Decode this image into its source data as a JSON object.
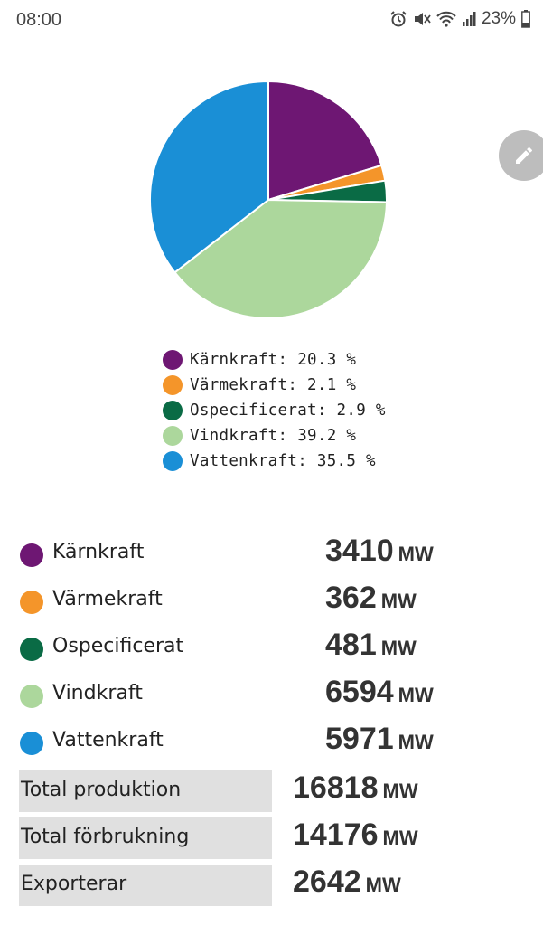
{
  "status_bar": {
    "time": "08:00",
    "battery": "23%",
    "icons": [
      "alarm-icon",
      "mute-icon",
      "wifi-icon",
      "signal-icon",
      "battery-icon"
    ]
  },
  "chart_data": {
    "type": "pie",
    "categories": [
      "Kärnkraft",
      "Värmekraft",
      "Ospecificerat",
      "Vindkraft",
      "Vattenkraft"
    ],
    "values": [
      20.3,
      2.1,
      2.9,
      39.2,
      35.5
    ],
    "colors": [
      "#6e1773",
      "#f4952a",
      "#0a6b45",
      "#acd79c",
      "#1a8fd6"
    ],
    "legend": [
      "Kärnkraft: 20.3 %",
      "Värmekraft: 2.1 %",
      "Ospecificerat: 2.9 %",
      "Vindkraft: 39.2 %",
      "Vattenkraft: 35.5 %"
    ],
    "legend_position": "bottom"
  },
  "sources": [
    {
      "name": "Kärnkraft",
      "value": "3410",
      "unit": "MW",
      "color": "#6e1773"
    },
    {
      "name": "Värmekraft",
      "value": "362",
      "unit": "MW",
      "color": "#f4952a"
    },
    {
      "name": "Ospecificerat",
      "value": "481",
      "unit": "MW",
      "color": "#0a6b45"
    },
    {
      "name": "Vindkraft",
      "value": "6594",
      "unit": "MW",
      "color": "#acd79c"
    },
    {
      "name": "Vattenkraft",
      "value": "5971",
      "unit": "MW",
      "color": "#1a8fd6"
    }
  ],
  "totals": [
    {
      "label": "Total produktion",
      "value": "16818",
      "unit": "MW"
    },
    {
      "label": "Total förbrukning",
      "value": "14176",
      "unit": "MW"
    },
    {
      "label": "Exporterar",
      "value": "2642",
      "unit": "MW"
    }
  ],
  "edit_icon": "pencil-icon"
}
